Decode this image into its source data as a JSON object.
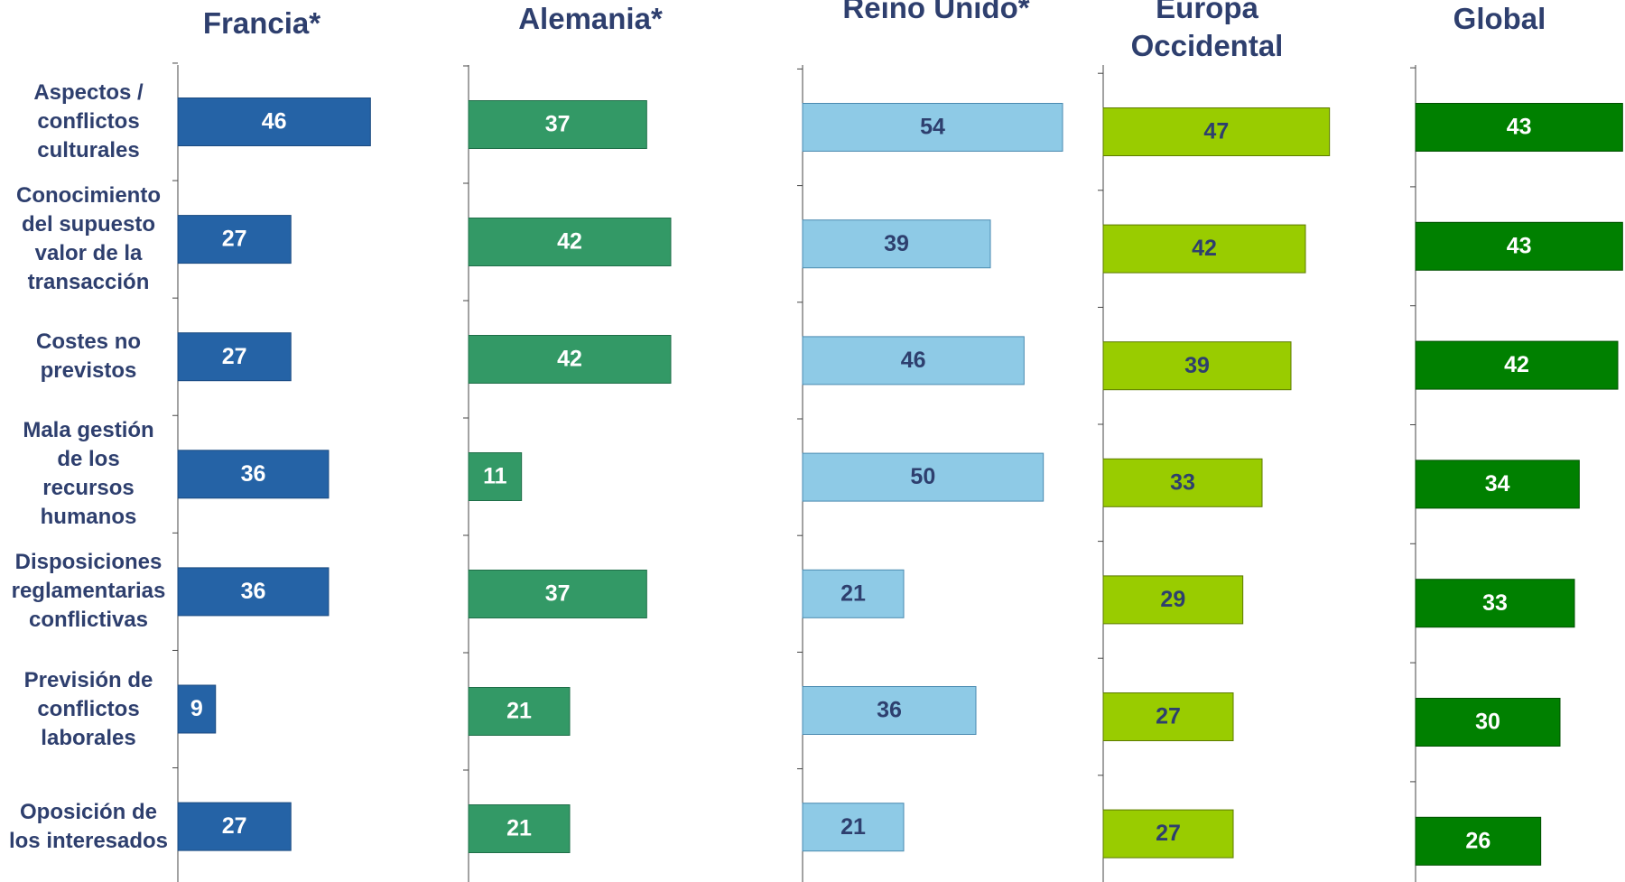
{
  "chart_data": [
    {
      "type": "bar",
      "title": "Francia*",
      "categories": [
        "Aspectos /\nconflictos\nculturales",
        "Conocimiento\ndel supuesto\nvalor de la\ntransacción",
        "Costes no\nprevistos",
        "Mala gestión\nde los\nrecursos\nhumanos",
        "Disposiciones\nreglamentarias\nconflictivas",
        "Previsión de\nconflictos\nlaborales",
        "Oposición de\nlos interesados"
      ],
      "values": [
        46,
        27,
        27,
        36,
        36,
        9,
        27
      ],
      "color": "#2563a6",
      "border": "#1a4a80",
      "label_color": "#ffffff",
      "xlim": [
        0,
        69
      ]
    },
    {
      "type": "bar",
      "title": "Alemania*",
      "values": [
        37,
        42,
        42,
        11,
        37,
        21,
        21
      ],
      "color": "#339966",
      "border": "#1f6e48",
      "label_color": "#ffffff",
      "xlim": [
        0,
        60
      ]
    },
    {
      "type": "bar",
      "title": "Reino Unido*",
      "values": [
        54,
        39,
        46,
        50,
        21,
        36,
        21
      ],
      "color": "#8ecae6",
      "border": "#4a8ab0",
      "label_color": "#2e3f6e",
      "xlim": [
        0,
        60
      ]
    },
    {
      "type": "bar",
      "title": "Europa\nOccidental",
      "values": [
        47,
        42,
        39,
        33,
        29,
        27,
        27
      ],
      "color": "#99cc00",
      "border": "#5c7a00",
      "label_color": "#2e3f6e",
      "xlim": [
        0,
        60
      ]
    },
    {
      "type": "bar",
      "title": "Global",
      "values": [
        43,
        43,
        42,
        34,
        33,
        30,
        26
      ],
      "color": "#008000",
      "border": "#005000",
      "label_color": "#ffffff",
      "xlim": [
        0,
        60
      ]
    }
  ]
}
